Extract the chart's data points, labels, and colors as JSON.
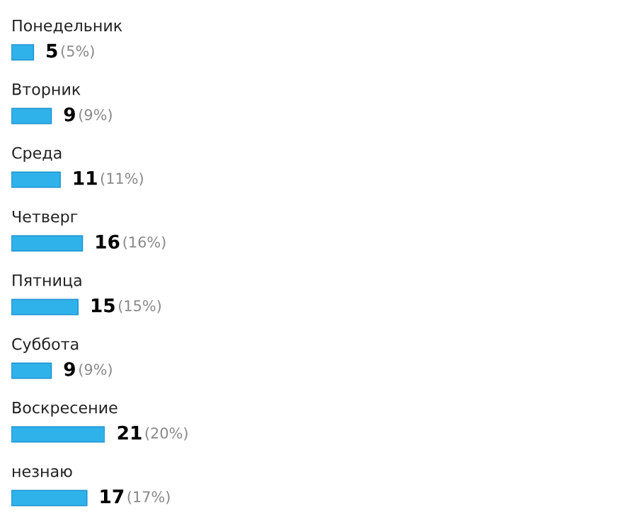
{
  "chart_data": {
    "type": "bar",
    "orientation": "horizontal",
    "categories": [
      "Понедельник",
      "Вторник",
      "Среда",
      "Четверг",
      "Пятница",
      "Суббота",
      "Воскресение",
      "незнаю"
    ],
    "values": [
      5,
      9,
      11,
      16,
      15,
      9,
      21,
      17
    ],
    "color": "#2fb2ea",
    "data_labels": true,
    "annotations": [
      {
        "text": "(5%)",
        "x": 5,
        "y": "Понедельник"
      },
      {
        "text": "(9%)",
        "x": 9,
        "y": "Вторник"
      },
      {
        "text": "(11%)",
        "x": 11,
        "y": "Среда"
      },
      {
        "text": "(16%)",
        "x": 16,
        "y": "Четверг"
      },
      {
        "text": "(15%)",
        "x": 15,
        "y": "Пятница"
      },
      {
        "text": "(9%)",
        "x": 9,
        "y": "Суббота"
      },
      {
        "text": "(20%)",
        "x": 21,
        "y": "Воскресение"
      },
      {
        "text": "(17%)",
        "x": 17,
        "y": "незнаю"
      }
    ]
  }
}
